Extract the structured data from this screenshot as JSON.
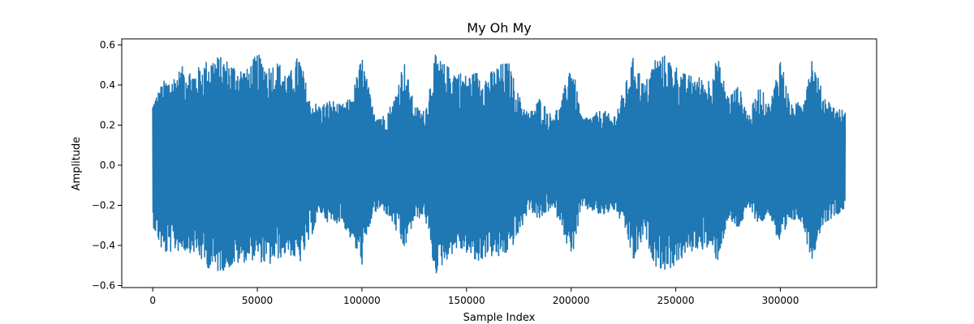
{
  "chart_data": {
    "type": "line",
    "title": "My Oh My",
    "xlabel": "Sample Index",
    "ylabel": "Amplitude",
    "xlim": [
      -14800,
      346000
    ],
    "ylim": [
      -0.61,
      0.63
    ],
    "x_ticks": [
      0,
      50000,
      100000,
      150000,
      200000,
      250000,
      300000
    ],
    "x_tick_labels": [
      "0",
      "50000",
      "100000",
      "150000",
      "200000",
      "250000",
      "300000"
    ],
    "y_ticks": [
      -0.6,
      -0.4,
      -0.2,
      0.0,
      0.2,
      0.4,
      0.6
    ],
    "y_tick_labels": [
      "−0.6",
      "−0.4",
      "−0.2",
      "0.0",
      "0.2",
      "0.4",
      "0.6"
    ],
    "grid": false,
    "series": [
      {
        "color": "#1f77b4",
        "n_samples": 331000,
        "envelope": {
          "x": [
            0,
            5000,
            10000,
            15000,
            20000,
            25000,
            30000,
            35000,
            40000,
            45000,
            50000,
            55000,
            60000,
            65000,
            70000,
            75000,
            80000,
            85000,
            90000,
            95000,
            100000,
            105000,
            110000,
            115000,
            120000,
            125000,
            130000,
            135000,
            140000,
            145000,
            150000,
            155000,
            160000,
            165000,
            170000,
            175000,
            180000,
            185000,
            190000,
            195000,
            200000,
            205000,
            210000,
            215000,
            220000,
            225000,
            230000,
            235000,
            240000,
            245000,
            250000,
            255000,
            260000,
            265000,
            270000,
            275000,
            280000,
            285000,
            290000,
            295000,
            300000,
            305000,
            310000,
            315000,
            320000,
            325000,
            331000
          ],
          "max": [
            0.32,
            0.42,
            0.45,
            0.5,
            0.47,
            0.52,
            0.55,
            0.53,
            0.5,
            0.48,
            0.56,
            0.5,
            0.52,
            0.45,
            0.56,
            0.33,
            0.3,
            0.33,
            0.3,
            0.34,
            0.55,
            0.3,
            0.25,
            0.32,
            0.53,
            0.3,
            0.27,
            0.55,
            0.5,
            0.48,
            0.45,
            0.47,
            0.45,
            0.5,
            0.52,
            0.35,
            0.26,
            0.34,
            0.26,
            0.3,
            0.54,
            0.24,
            0.25,
            0.28,
            0.24,
            0.37,
            0.55,
            0.4,
            0.54,
            0.55,
            0.5,
            0.45,
            0.45,
            0.42,
            0.54,
            0.35,
            0.4,
            0.25,
            0.4,
            0.3,
            0.55,
            0.3,
            0.32,
            0.55,
            0.37,
            0.3,
            0.27
          ],
          "min": [
            -0.3,
            -0.45,
            -0.43,
            -0.43,
            -0.44,
            -0.5,
            -0.54,
            -0.52,
            -0.5,
            -0.48,
            -0.47,
            -0.51,
            -0.47,
            -0.44,
            -0.5,
            -0.38,
            -0.24,
            -0.3,
            -0.28,
            -0.38,
            -0.5,
            -0.25,
            -0.22,
            -0.3,
            -0.43,
            -0.28,
            -0.25,
            -0.55,
            -0.48,
            -0.42,
            -0.44,
            -0.5,
            -0.45,
            -0.47,
            -0.44,
            -0.35,
            -0.22,
            -0.28,
            -0.22,
            -0.28,
            -0.48,
            -0.22,
            -0.23,
            -0.26,
            -0.22,
            -0.3,
            -0.49,
            -0.35,
            -0.5,
            -0.53,
            -0.5,
            -0.45,
            -0.42,
            -0.42,
            -0.48,
            -0.28,
            -0.32,
            -0.22,
            -0.3,
            -0.25,
            -0.43,
            -0.28,
            -0.28,
            -0.48,
            -0.3,
            -0.26,
            -0.22
          ]
        }
      }
    ]
  }
}
